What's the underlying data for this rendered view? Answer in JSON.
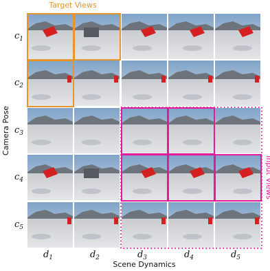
{
  "header": {
    "title": "Target Views"
  },
  "side_label": "Input Views",
  "y_axis_label": "Camera Pose",
  "x_axis_label": "Scene Dynamics",
  "rows": [
    {
      "symbol": "c",
      "index": "1"
    },
    {
      "symbol": "c",
      "index": "2"
    },
    {
      "symbol": "c",
      "index": "3"
    },
    {
      "symbol": "c",
      "index": "4"
    },
    {
      "symbol": "c",
      "index": "5"
    }
  ],
  "columns": [
    {
      "symbol": "d",
      "index": "1"
    },
    {
      "symbol": "d",
      "index": "2"
    },
    {
      "symbol": "d",
      "index": "3"
    },
    {
      "symbol": "d",
      "index": "4"
    },
    {
      "symbol": "d",
      "index": "5"
    }
  ]
}
